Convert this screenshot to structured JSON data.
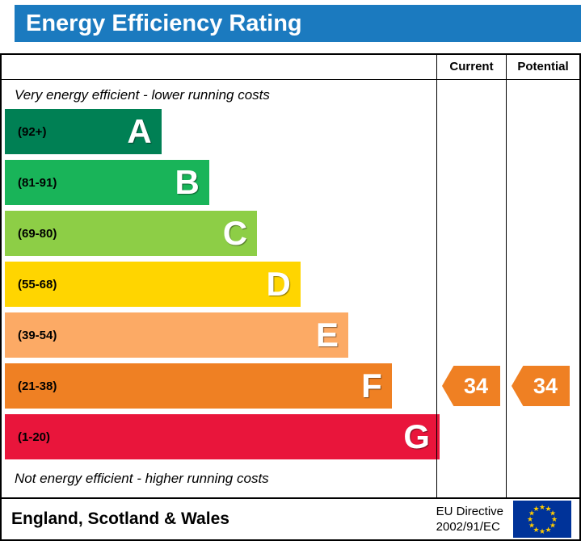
{
  "title": "Energy Efficiency Rating",
  "title_bg_color": "#1b7abf",
  "header": {
    "current": "Current",
    "potential": "Potential"
  },
  "notes": {
    "top": "Very energy efficient - lower running costs",
    "bottom": "Not energy efficient - higher running costs"
  },
  "chart_data": {
    "type": "bar",
    "title": "Energy Efficiency Rating",
    "categories": [
      "A",
      "B",
      "C",
      "D",
      "E",
      "F",
      "G"
    ],
    "bands": [
      {
        "letter": "A",
        "range_label": "(92+)",
        "color": "#008054",
        "width_pct": 36
      },
      {
        "letter": "B",
        "range_label": "(81-91)",
        "color": "#19b459",
        "width_pct": 47
      },
      {
        "letter": "C",
        "range_label": "(69-80)",
        "color": "#8dce46",
        "width_pct": 58
      },
      {
        "letter": "D",
        "range_label": "(55-68)",
        "color": "#ffd500",
        "width_pct": 68
      },
      {
        "letter": "E",
        "range_label": "(39-54)",
        "color": "#fcaa65",
        "width_pct": 79
      },
      {
        "letter": "F",
        "range_label": "(21-38)",
        "color": "#ef8023",
        "width_pct": 89
      },
      {
        "letter": "G",
        "range_label": "(1-20)",
        "color": "#e9153b",
        "width_pct": 100
      }
    ],
    "current": {
      "value": "34",
      "band": "F",
      "color": "#ef8023"
    },
    "potential": {
      "value": "34",
      "band": "F",
      "color": "#ef8023"
    },
    "legend_position": "none",
    "grid": false
  },
  "footer": {
    "region": "England, Scotland & Wales",
    "directive_line1": "EU Directive",
    "directive_line2": "2002/91/EC",
    "eu_flag": {
      "bg": "#003399",
      "star": "#ffcc00"
    }
  }
}
